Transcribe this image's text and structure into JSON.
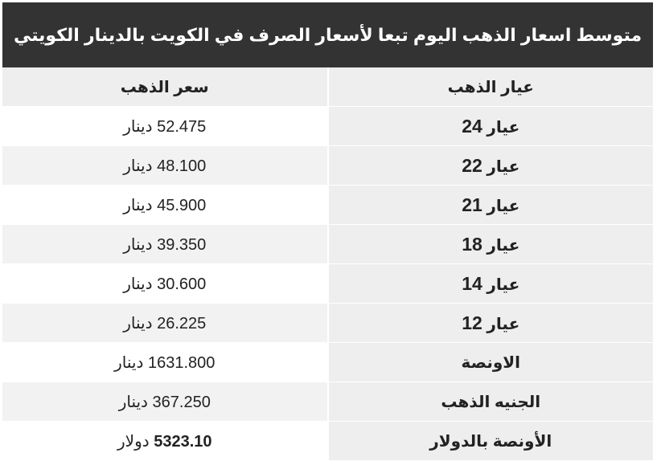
{
  "title": "متوسط اسعار الذهب اليوم تبعا لأسعار الصرف في الكويت بالدينار الكويتي",
  "headers": {
    "karat": "عيار الذهب",
    "price": "سعر الذهب"
  },
  "rows": [
    {
      "label": "عيار",
      "num": "24",
      "price": "52.475",
      "unit": "دينار"
    },
    {
      "label": "عيار",
      "num": "22",
      "price": "48.100",
      "unit": "دينار"
    },
    {
      "label": "عيار",
      "num": "21",
      "price": "45.900",
      "unit": "دينار"
    },
    {
      "label": "عيار",
      "num": "18",
      "price": "39.350",
      "unit": "دينار"
    },
    {
      "label": "عيار",
      "num": "14",
      "price": "30.600",
      "unit": "دينار"
    },
    {
      "label": "عيار",
      "num": "12",
      "price": "26.225",
      "unit": "دينار"
    },
    {
      "label": "الاونصة",
      "num": "",
      "price": "1631.800",
      "unit": "دينار"
    },
    {
      "label": "الجنيه الذهب",
      "num": "",
      "price": "367.250",
      "unit": "دينار"
    },
    {
      "label": "الأونصة بالدولار",
      "num": "",
      "price": "5323.10",
      "unit": "دولار"
    }
  ]
}
